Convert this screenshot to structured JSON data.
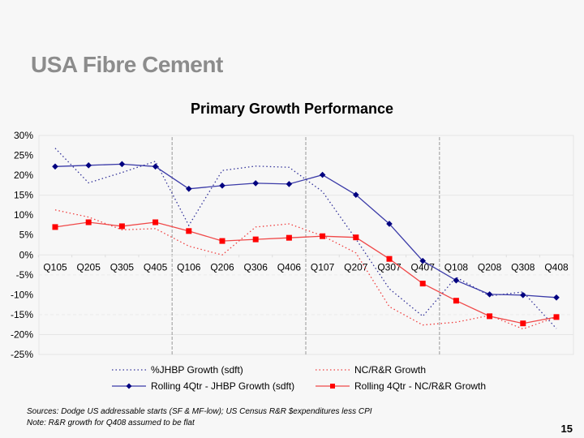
{
  "slide": {
    "title": "USA Fibre Cement",
    "page_number": "15",
    "footnotes": [
      "Sources:  Dodge US addressable starts (SF & MF-low); US Census R&R $expenditures less CPI",
      "Note:  R&R growth for Q408 assumed to be flat"
    ]
  },
  "chart_data": {
    "type": "line",
    "title": "Primary Growth Performance",
    "xlabel": "",
    "ylabel": "",
    "categories": [
      "Q105",
      "Q205",
      "Q305",
      "Q405",
      "Q106",
      "Q206",
      "Q306",
      "Q406",
      "Q107",
      "Q207",
      "Q307",
      "Q407",
      "Q108",
      "Q208",
      "Q308",
      "Q408"
    ],
    "ylim": [
      -25,
      30
    ],
    "yticks": [
      30,
      25,
      20,
      15,
      10,
      5,
      0,
      -5,
      -10,
      -15,
      -20,
      -25
    ],
    "ytick_labels": [
      "30%",
      "25%",
      "20%",
      "15%",
      "10%",
      "5%",
      "0%",
      "-5%",
      "-10%",
      "-15%",
      "-20%",
      "-25%"
    ],
    "year_dividers_after": [
      "Q405",
      "Q406",
      "Q407"
    ],
    "legend_position": "bottom",
    "series": [
      {
        "name": "%JHBP Growth (sdft)",
        "style": "dotted",
        "marker": "none",
        "color": "#33339a",
        "values": [
          26.8,
          18.1,
          20.7,
          23.5,
          7.4,
          21.2,
          22.3,
          22.0,
          15.9,
          4.0,
          -8.5,
          -15.4,
          -5.6,
          -10.3,
          -9.3,
          -18.5
        ]
      },
      {
        "name": "NC/R&R Growth",
        "style": "dotted",
        "marker": "none",
        "color": "#f04040",
        "values": [
          11.3,
          9.5,
          6.3,
          6.6,
          2.2,
          0.0,
          7.0,
          7.8,
          4.8,
          0.5,
          -13.0,
          -17.6,
          -16.9,
          -15.2,
          -18.6,
          -15.6
        ]
      },
      {
        "name": "Rolling 4Qtr - JHBP Growth (sdft)",
        "style": "solid",
        "marker": "diamond",
        "color": "#3b3ba8",
        "marker_color": "#000080",
        "values": [
          22.2,
          22.5,
          22.8,
          22.2,
          16.6,
          17.4,
          18.0,
          17.8,
          20.1,
          15.1,
          7.8,
          -1.5,
          -6.4,
          -9.9,
          -10.1,
          -10.7
        ]
      },
      {
        "name": "Rolling 4Qtr - NC/R&R Growth",
        "style": "solid",
        "marker": "square",
        "color": "#f04848",
        "marker_color": "#ff0000",
        "values": [
          7.0,
          8.2,
          7.2,
          8.2,
          6.0,
          3.5,
          3.9,
          4.3,
          4.7,
          4.4,
          -1.0,
          -7.2,
          -11.5,
          -15.4,
          -17.2,
          -15.6
        ]
      }
    ],
    "legend": [
      {
        "label": "%JHBP Growth (sdft)"
      },
      {
        "label": "NC/R&R Growth"
      },
      {
        "label": "Rolling 4Qtr - JHBP Growth (sdft)"
      },
      {
        "label": "Rolling 4Qtr - NC/R&R Growth"
      }
    ]
  }
}
